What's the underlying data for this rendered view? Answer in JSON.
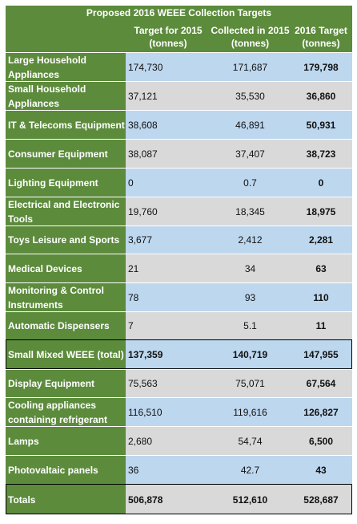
{
  "title": "Proposed 2016 WEEE Collection Targets",
  "headers": [
    "",
    "Target for 2015 (tonnes)",
    "Collected in 2015 (tonnes)",
    "2016 Target (tonnes)"
  ],
  "rows": [
    {
      "label": "Large Household Appliances",
      "target2015": "174,730",
      "collected2015": "171,687",
      "target2016": "179,798"
    },
    {
      "label": "Small Household Appliances",
      "target2015": "37,121",
      "collected2015": "35,530",
      "target2016": "36,860"
    },
    {
      "label": "IT & Telecoms Equipment",
      "target2015": "38,608",
      "collected2015": "46,891",
      "target2016": "50,931"
    },
    {
      "label": "Consumer Equipment",
      "target2015": "38,087",
      "collected2015": "37,407",
      "target2016": "38,723"
    },
    {
      "label": "Lighting Equipment",
      "target2015": "0",
      "collected2015": "0.7",
      "target2016": "0"
    },
    {
      "label": "Electrical and Electronic Tools",
      "target2015": "19,760",
      "collected2015": "18,345",
      "target2016": "18,975"
    },
    {
      "label": "Toys Leisure and Sports",
      "target2015": "3,677",
      "collected2015": "2,412",
      "target2016": "2,281"
    },
    {
      "label": "Medical Devices",
      "target2015": "21",
      "collected2015": "34",
      "target2016": "63"
    },
    {
      "label": "Monitoring & Control Instruments",
      "target2015": "78",
      "collected2015": "93",
      "target2016": "110"
    },
    {
      "label": "Automatic Dispensers",
      "target2015": "7",
      "collected2015": "5.1",
      "target2016": "11"
    },
    {
      "label": "Small Mixed WEEE (total)",
      "target2015": "137,359",
      "collected2015": "140,719",
      "target2016": "147,955"
    },
    {
      "label": "Display Equipment",
      "target2015": "75,563",
      "collected2015": "75,071",
      "target2016": "67,564"
    },
    {
      "label": "Cooling appliances containing refrigerant",
      "target2015": "116,510",
      "collected2015": "119,616",
      "target2016": "126,827"
    },
    {
      "label": "Lamps",
      "target2015": "2,680",
      "collected2015": "54,74",
      "target2016": "6,500"
    },
    {
      "label": "Photovaltaic panels",
      "target2015": "36",
      "collected2015": "42.7",
      "target2016": "43"
    },
    {
      "label": "Totals",
      "target2015": "506,878",
      "collected2015": "512,610",
      "target2016": "528,687"
    }
  ],
  "colors": {
    "header_green": "#5c8b3c",
    "row_blue": "#bdd7ee",
    "row_grey": "#d9d9d9"
  }
}
